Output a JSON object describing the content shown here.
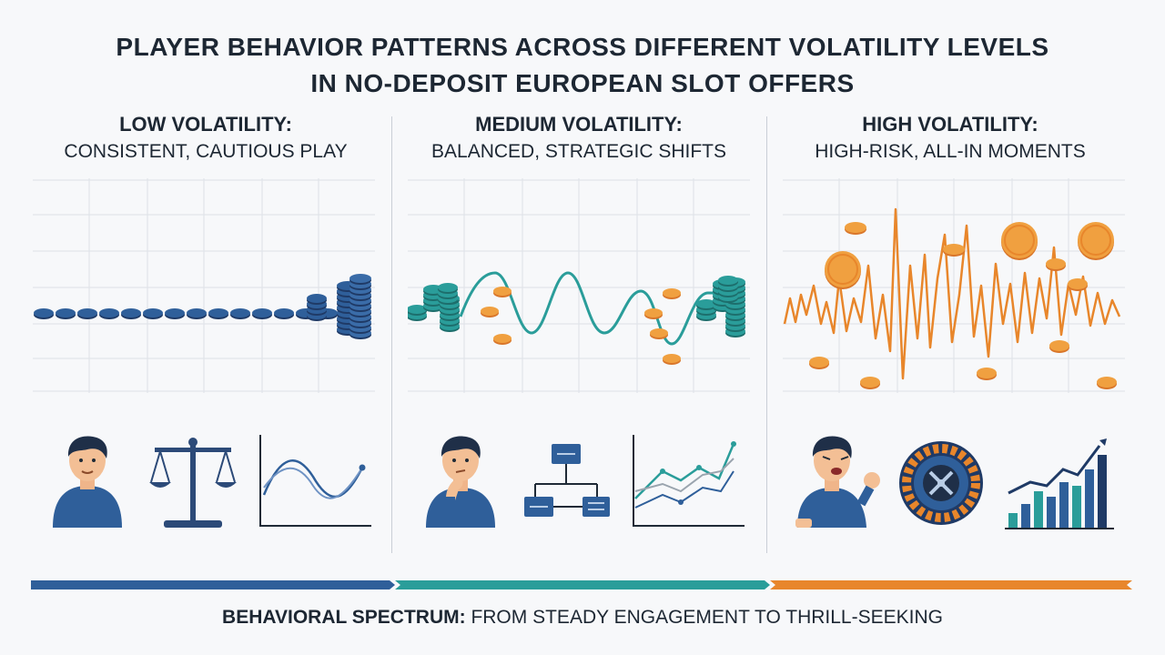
{
  "title": {
    "line1": "PLAYER BEHAVIOR PATTERNS ACROSS DIFFERENT VOLATILITY LEVELS",
    "line2": "IN NO-DEPOSIT EUROPEAN SLOT OFFERS"
  },
  "columns": [
    {
      "heading": "LOW VOLATILITY:",
      "subheading": "CONSISTENT, CAUTIOUS PLAY",
      "accent": "#2f5f9a"
    },
    {
      "heading": "MEDIUM VOLATILITY:",
      "subheading": "BALANCED, STRATEGIC SHIFTS",
      "accent": "#2a9d9a"
    },
    {
      "heading": "HIGH VOLATILITY:",
      "subheading": "HIGH-RISK, ALL-IN MOMENTS",
      "accent": "#e8862b"
    }
  ],
  "icons": {
    "low": [
      "calm-player-icon",
      "balance-scale-icon",
      "smooth-wave-chart-icon"
    ],
    "medium": [
      "thinking-player-icon",
      "flowchart-icon",
      "multi-line-chart-icon"
    ],
    "high": [
      "frustrated-player-icon",
      "roulette-wheel-icon",
      "rising-bar-chart-icon"
    ]
  },
  "spectrum": {
    "colors": [
      "#2f5f9a",
      "#2a9d9a",
      "#e8862b"
    ]
  },
  "footer": {
    "bold": "BEHAVIORAL SPECTRUM:",
    "rest": " FROM STEADY ENGAGEMENT TO THRILL-SEEKING"
  }
}
